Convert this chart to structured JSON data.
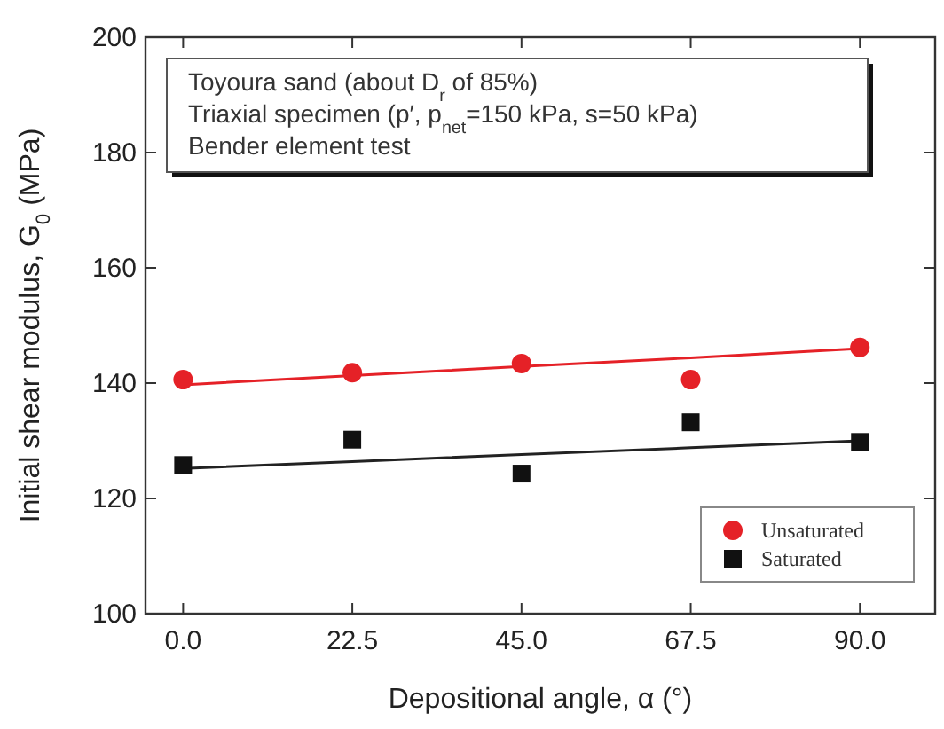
{
  "chart_data": {
    "type": "scatter",
    "xlabel": "Depositional angle, α (°)",
    "ylabel": "Initial shear modulus, G$_{0}$ (MPa)",
    "x": [
      0,
      22.5,
      45,
      67.5,
      90
    ],
    "series": [
      {
        "name": "Unsaturated",
        "color": "#e52127",
        "marker": "circle",
        "values": [
          140.6,
          141.8,
          143.4,
          140.6,
          146.2
        ]
      },
      {
        "name": "Saturated",
        "color": "#111111",
        "marker": "square",
        "values": [
          125.8,
          130.2,
          124.3,
          133.2,
          129.8
        ]
      },
      {
        "type": "line",
        "color": "#e52127",
        "values": [
          139.7,
          141.3,
          142.9,
          144.4,
          146.0
        ],
        "line_style": "solid",
        "marker": "none"
      },
      {
        "type": "line",
        "color": "#222222",
        "values": [
          125.2,
          126.4,
          127.6,
          128.8,
          130.0
        ],
        "line_style": "solid",
        "marker": "none"
      }
    ],
    "xlim": [
      -5,
      100
    ],
    "ylim": [
      100,
      200
    ],
    "xticks": [
      {
        "value": 0,
        "label": "0.0"
      },
      {
        "value": 22.5,
        "label": "22.5"
      },
      {
        "value": 45,
        "label": "45.0"
      },
      {
        "value": 67.5,
        "label": "67.5"
      },
      {
        "value": 90,
        "label": "90.0"
      }
    ],
    "yticks": [
      100,
      120,
      140,
      160,
      180,
      200
    ],
    "annotations": [
      "Toyoura sand (about D$_{r}$ of 85%)",
      "Triaxial specimen (p′, p$_{net}$=150 kPa, s=50 kPa)",
      "Bender element test"
    ],
    "legend": "bottom right",
    "grid": false
  }
}
